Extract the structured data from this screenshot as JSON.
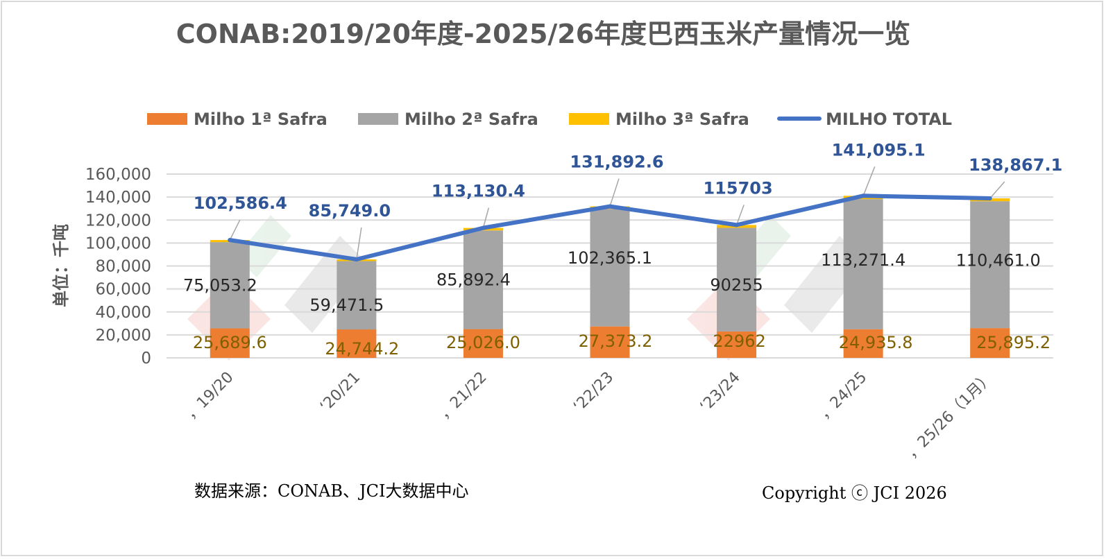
{
  "chart_data": {
    "type": "bar",
    "stacked": true,
    "title": "CONAB:2019/20年度-2025/26年度巴西玉米产量情况一览",
    "ylabel": "单位：千吨",
    "xlabel": "",
    "ylim": [
      0,
      160000
    ],
    "yticks": [
      0,
      20000,
      40000,
      60000,
      80000,
      100000,
      120000,
      140000,
      160000
    ],
    "ytick_labels": [
      "0",
      "20,000",
      "40,000",
      "60,000",
      "80,000",
      "100,000",
      "120,000",
      "140,000",
      "160,000"
    ],
    "grid": true,
    "legend_position": "top",
    "categories": [
      "，19/20",
      "‘20/21",
      "，21/22",
      "‘22/23",
      "‘23/24",
      "，24/25",
      "，25/26（1月）"
    ],
    "series": [
      {
        "name": "Milho 1ª Safra",
        "kind": "bar",
        "color": "#ed7d31",
        "values": [
          25689.6,
          24744.2,
          25026.0,
          27373.2,
          22962,
          24935.8,
          25895.2
        ],
        "labels": [
          "25,689.6",
          "24,744.2",
          "25,026.0",
          "27,373.2",
          "22962",
          "24,935.8",
          "25,895.2"
        ]
      },
      {
        "name": "Milho 2ª Safra",
        "kind": "bar",
        "color": "#a5a5a5",
        "values": [
          75053.2,
          59471.5,
          85892.4,
          102365.1,
          90255,
          113271.4,
          110461.0
        ],
        "labels": [
          "75,053.2",
          "59,471.5",
          "85,892.4",
          "102,365.1",
          "90255",
          "113,271.4",
          "110,461.0"
        ]
      },
      {
        "name": "Milho 3ª Safra",
        "kind": "bar",
        "color": "#ffc000",
        "values": [
          1843.6,
          1533.3,
          2211.9,
          2154.3,
          2486,
          2887.9,
          2510.9
        ]
      },
      {
        "name": "MILHO TOTAL",
        "kind": "line",
        "color": "#4472c4",
        "values": [
          102586.4,
          85749.0,
          113130.4,
          131892.6,
          115703,
          141095.1,
          138867.1
        ],
        "labels": [
          "102,586.4",
          "85,749.0",
          "113,130.4",
          "131,892.6",
          "115703",
          "141,095.1",
          "138,867.1"
        ]
      }
    ]
  },
  "footer": {
    "source": "数据来源：CONAB、JCI大数据中心",
    "copyright": "Copyright ⓒ JCI 2026"
  },
  "colors": {
    "grid": "#d9d9d9",
    "leader": "#a6a6a6",
    "watermark_red": "#f4c7c3",
    "watermark_gray": "#d0d0d0",
    "watermark_green": "#cfe6d5"
  }
}
